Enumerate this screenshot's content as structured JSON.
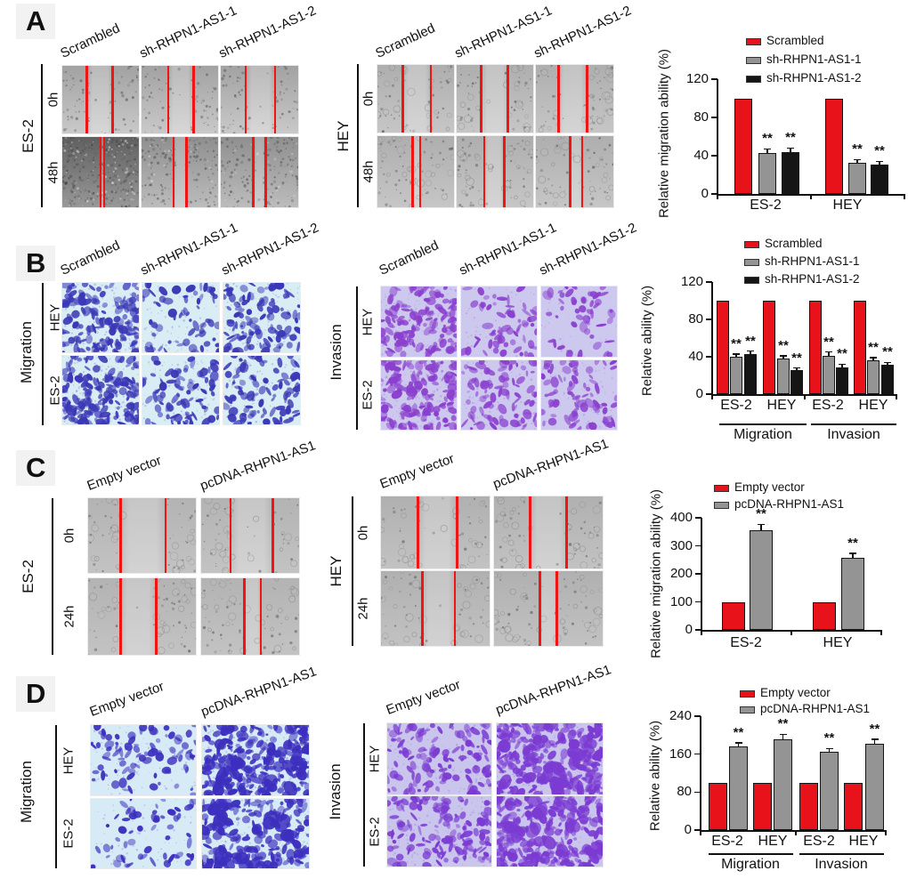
{
  "colors": {
    "bar_red": "#e8121a",
    "bar_gray": "#949494",
    "bar_black": "#151515",
    "wound_line_red": "#f01414",
    "migration_stain": "#3b37b6",
    "migration_bg": "#d9edf5",
    "invasion_stain": "#8a3fce",
    "invasion_bg": "#cdc9ee",
    "overexpr_migration_stain": "#3c2fbe",
    "overexpr_migration_bg": "#d6ebf5",
    "overexpr_invasion_stain": "#7b3bd2",
    "overexpr_invasion_bg": "#cac5ec"
  },
  "wound_presets": {
    "w-es0": {
      "top": "#a2a2a2",
      "bottom": "#c9c9c9",
      "speckles": 110,
      "rings": 0,
      "lightdots": 0
    },
    "w-dark": {
      "top": "#606060",
      "bottom": "#989898",
      "speckles": 260,
      "rings": 0,
      "lightdots": 90
    },
    "w-med": {
      "top": "#8f8f8f",
      "bottom": "#bcbcbc",
      "speckles": 170,
      "rings": 0,
      "lightdots": 30
    },
    "w-hey": {
      "top": "#aeaeae",
      "bottom": "#c6c6c6",
      "speckles": 60,
      "rings": 26,
      "lightdots": 0
    },
    "w-hey2": {
      "top": "#b0b0b0",
      "bottom": "#c2c2c2",
      "speckles": 55,
      "rings": 34,
      "lightdots": 0
    },
    "w-c": {
      "top": "#b3b3b3",
      "bottom": "#c3c3c3",
      "speckles": 55,
      "rings": 30,
      "lightdots": 0
    }
  },
  "panels": {
    "A": {
      "label": "A",
      "blocks": [
        {
          "kind": "wound",
          "side_label": "ES-2",
          "row_labels": [
            "0h",
            "48h"
          ],
          "col_labels": [
            "Scrambled",
            "sh-RHPN1-AS1-1",
            "sh-RHPN1-AS1-2"
          ],
          "images": [
            {
              "preset": "w-es0",
              "lines": [
                0.32,
                0.66
              ]
            },
            {
              "preset": "w-es0",
              "lines": [
                0.35,
                0.68
              ]
            },
            {
              "preset": "w-es0",
              "lines": [
                0.32,
                0.7
              ]
            },
            {
              "preset": "w-dark",
              "lines": [
                0.5,
                0.545
              ]
            },
            {
              "preset": "w-med",
              "lines": [
                0.42,
                0.59
              ]
            },
            {
              "preset": "w-med",
              "lines": [
                0.42,
                0.58
              ]
            }
          ]
        },
        {
          "kind": "wound",
          "side_label": "HEY",
          "row_labels": [
            "0h",
            "48h"
          ],
          "col_labels": [
            "Scrambled",
            "sh-RHPN1-AS1-1",
            "sh-RHPN1-AS1-2"
          ],
          "images": [
            {
              "preset": "w-hey",
              "lines": [
                0.33,
                0.7
              ]
            },
            {
              "preset": "w-hey",
              "lines": [
                0.32,
                0.67
              ]
            },
            {
              "preset": "w-hey",
              "lines": [
                0.29,
                0.66
              ]
            },
            {
              "preset": "w-hey",
              "lines": [
                0.46,
                0.56
              ]
            },
            {
              "preset": "w-hey",
              "lines": [
                0.36,
                0.62
              ]
            },
            {
              "preset": "w-hey",
              "lines": [
                0.44,
                0.6
              ]
            }
          ]
        }
      ]
    },
    "B": {
      "label": "B",
      "blocks": [
        {
          "kind": "transwell",
          "side_label": "Migration",
          "row_labels": [
            "HEY",
            "ES-2"
          ],
          "col_labels": [
            "Scrambled",
            "sh-RHPN1-AS1-1",
            "sh-RHPN1-AS1-2"
          ],
          "stain": "migration_stain",
          "bg": "migration_bg",
          "images": [
            {
              "density": 150
            },
            {
              "density": 65
            },
            {
              "density": 105
            },
            {
              "density": 165
            },
            {
              "density": 85
            },
            {
              "density": 95
            }
          ]
        },
        {
          "kind": "transwell",
          "side_label": "Invasion",
          "row_labels": [
            "HEY",
            "ES-2"
          ],
          "col_labels": [
            "Scrambled",
            "sh-RHPN1-AS1-1",
            "sh-RHPN1-AS1-2"
          ],
          "stain": "invasion_stain",
          "bg": "invasion_bg",
          "images": [
            {
              "density": 140
            },
            {
              "density": 60
            },
            {
              "density": 50
            },
            {
              "density": 155
            },
            {
              "density": 85
            },
            {
              "density": 75
            }
          ]
        }
      ]
    },
    "C": {
      "label": "C",
      "blocks": [
        {
          "kind": "wound",
          "side_label": "ES-2",
          "row_labels": [
            "0h",
            "24h"
          ],
          "col_labels": [
            "Empty vector",
            "pcDNA-RHPN1-AS1"
          ],
          "images": [
            {
              "preset": "w-c",
              "lines": [
                0.3,
                0.72
              ]
            },
            {
              "preset": "w-c",
              "lines": [
                0.3,
                0.73
              ]
            },
            {
              "preset": "w-c",
              "lines": [
                0.3,
                0.63
              ]
            },
            {
              "preset": "w-c",
              "lines": [
                0.44,
                0.61
              ]
            }
          ]
        },
        {
          "kind": "wound",
          "side_label": "HEY",
          "row_labels": [
            "0h",
            "24h"
          ],
          "col_labels": [
            "Empty vector",
            "pcDNA-RHPN1-AS1"
          ],
          "images": [
            {
              "preset": "w-hey2",
              "lines": [
                0.34,
                0.7
              ]
            },
            {
              "preset": "w-hey2",
              "lines": [
                0.33,
                0.67
              ]
            },
            {
              "preset": "w-hey2",
              "lines": [
                0.38,
                0.68
              ]
            },
            {
              "preset": "w-hey2",
              "lines": [
                0.42,
                0.58
              ]
            }
          ]
        }
      ]
    },
    "D": {
      "label": "D",
      "blocks": [
        {
          "kind": "transwell",
          "side_label": "Migration",
          "row_labels": [
            "HEY",
            "ES-2"
          ],
          "col_labels": [
            "Empty vector",
            "pcDNA-RHPN1-AS1"
          ],
          "stain": "overexpr_migration_stain",
          "bg": "overexpr_migration_bg",
          "images": [
            {
              "density": 85
            },
            {
              "density": 230
            },
            {
              "density": 60
            },
            {
              "density": 190
            }
          ]
        },
        {
          "kind": "transwell",
          "side_label": "Invasion",
          "row_labels": [
            "HEY",
            "ES-2"
          ],
          "col_labels": [
            "Empty vector",
            "pcDNA-RHPN1-AS1"
          ],
          "stain": "overexpr_invasion_stain",
          "bg": "overexpr_invasion_bg",
          "images": [
            {
              "density": 130
            },
            {
              "density": 260
            },
            {
              "density": 135
            },
            {
              "density": 230
            }
          ]
        }
      ]
    }
  },
  "chart_data": [
    {
      "id": "A",
      "type": "bar",
      "title": "",
      "ylabel": "Relative migration ability (%)",
      "xlabel": "",
      "ylim": [
        0,
        120
      ],
      "yticks": [
        0,
        40,
        80,
        120
      ],
      "categories": [
        "ES-2",
        "HEY"
      ],
      "series": [
        {
          "name": "Scrambled",
          "color_key": "bar_red",
          "values": [
            100,
            100
          ],
          "errors": [
            0,
            0
          ],
          "sig": [
            "",
            ""
          ]
        },
        {
          "name": "sh-RHPN1-AS1-1",
          "color_key": "bar_gray",
          "values": [
            43,
            33
          ],
          "errors": [
            4,
            3
          ],
          "sig": [
            "**",
            "**"
          ]
        },
        {
          "name": "sh-RHPN1-AS1-2",
          "color_key": "bar_black",
          "values": [
            44,
            31
          ],
          "errors": [
            4,
            3
          ],
          "sig": [
            "**",
            "**"
          ]
        }
      ],
      "legend_position": "top"
    },
    {
      "id": "B",
      "type": "bar",
      "title": "",
      "ylabel": "Relative ability (%)",
      "xlabel": "",
      "ylim": [
        0,
        120
      ],
      "yticks": [
        0,
        40,
        80,
        120
      ],
      "categories": [
        "ES-2",
        "HEY",
        "ES-2",
        "HEY"
      ],
      "group_labels": [
        "Migration",
        "Invasion"
      ],
      "series": [
        {
          "name": "Scrambled",
          "color_key": "bar_red",
          "values": [
            100,
            100,
            100,
            100
          ],
          "errors": [
            0,
            0,
            0,
            0
          ],
          "sig": [
            "",
            "",
            "",
            ""
          ]
        },
        {
          "name": "sh-RHPN1-AS1-1",
          "color_key": "bar_gray",
          "values": [
            40,
            38,
            41,
            36
          ],
          "errors": [
            3,
            3,
            4,
            3
          ],
          "sig": [
            "**",
            "**",
            "**",
            "**"
          ]
        },
        {
          "name": "sh-RHPN1-AS1-2",
          "color_key": "bar_black",
          "values": [
            43,
            26,
            29,
            31
          ],
          "errors": [
            3,
            2,
            3,
            3
          ],
          "sig": [
            "**",
            "**",
            "**",
            "**"
          ]
        }
      ],
      "legend_position": "top"
    },
    {
      "id": "C",
      "type": "bar",
      "title": "",
      "ylabel": "Relative migration ability (%)",
      "xlabel": "",
      "ylim": [
        0,
        400
      ],
      "yticks": [
        0,
        100,
        200,
        300,
        400
      ],
      "categories": [
        "ES-2",
        "HEY"
      ],
      "series": [
        {
          "name": "Empty vector",
          "color_key": "bar_red",
          "values": [
            100,
            100
          ],
          "errors": [
            0,
            0
          ],
          "sig": [
            "",
            ""
          ]
        },
        {
          "name": "pcDNA-RHPN1-AS1",
          "color_key": "bar_gray",
          "values": [
            355,
            257
          ],
          "errors": [
            22,
            16
          ],
          "sig": [
            "**",
            "**"
          ]
        }
      ],
      "legend_position": "top"
    },
    {
      "id": "D",
      "type": "bar",
      "title": "",
      "ylabel": "Relative ability (%)",
      "xlabel": "",
      "ylim": [
        0,
        240
      ],
      "yticks": [
        0,
        80,
        160,
        240
      ],
      "categories": [
        "ES-2",
        "HEY",
        "ES-2",
        "HEY"
      ],
      "group_labels": [
        "Migration",
        "Invasion"
      ],
      "series": [
        {
          "name": "Empty vector",
          "color_key": "bar_red",
          "values": [
            100,
            100,
            100,
            100
          ],
          "errors": [
            0,
            0,
            0,
            0
          ],
          "sig": [
            "",
            "",
            "",
            ""
          ]
        },
        {
          "name": "pcDNA-RHPN1-AS1",
          "color_key": "bar_gray",
          "values": [
            176,
            192,
            165,
            182
          ],
          "errors": [
            8,
            10,
            7,
            9
          ],
          "sig": [
            "**",
            "**",
            "**",
            "**"
          ]
        }
      ],
      "legend_position": "top"
    }
  ]
}
